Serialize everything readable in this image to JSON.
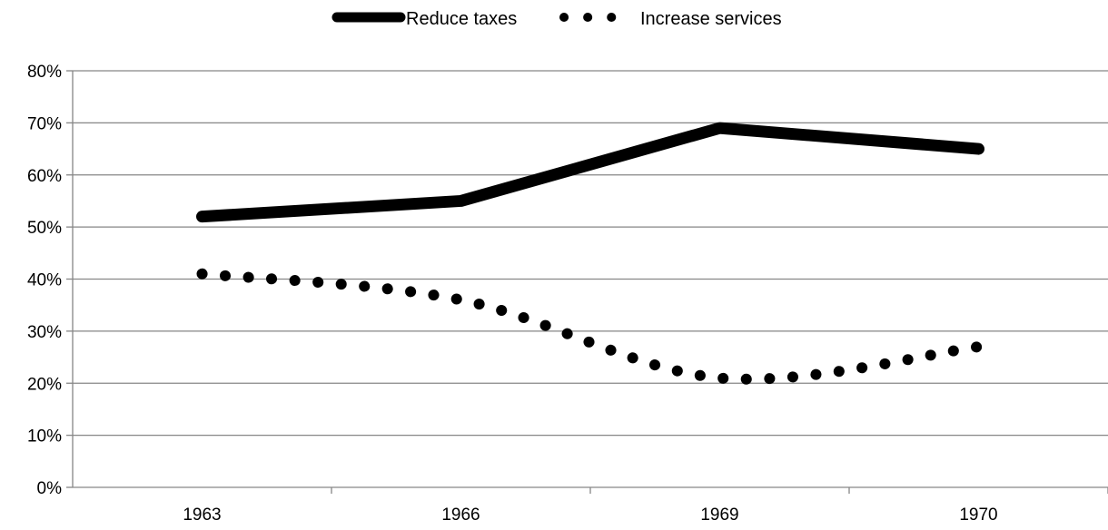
{
  "chart_data": {
    "type": "line",
    "categories": [
      "1963",
      "1966",
      "1969",
      "1970"
    ],
    "series": [
      {
        "name": "Reduce taxes",
        "values": [
          52,
          55,
          69,
          65
        ],
        "style": "solid",
        "color": "#000000"
      },
      {
        "name": "Increase services",
        "values": [
          41,
          36,
          21,
          27
        ],
        "style": "dotted",
        "color": "#000000"
      }
    ],
    "title": "",
    "xlabel": "",
    "ylabel": "",
    "ylim": [
      0,
      80
    ],
    "ytick_step": 10,
    "ytick_format": "percent",
    "yticks": [
      "0%",
      "10%",
      "20%",
      "30%",
      "40%",
      "50%",
      "60%",
      "70%",
      "80%"
    ],
    "grid": true,
    "legend_position": "top-center"
  }
}
